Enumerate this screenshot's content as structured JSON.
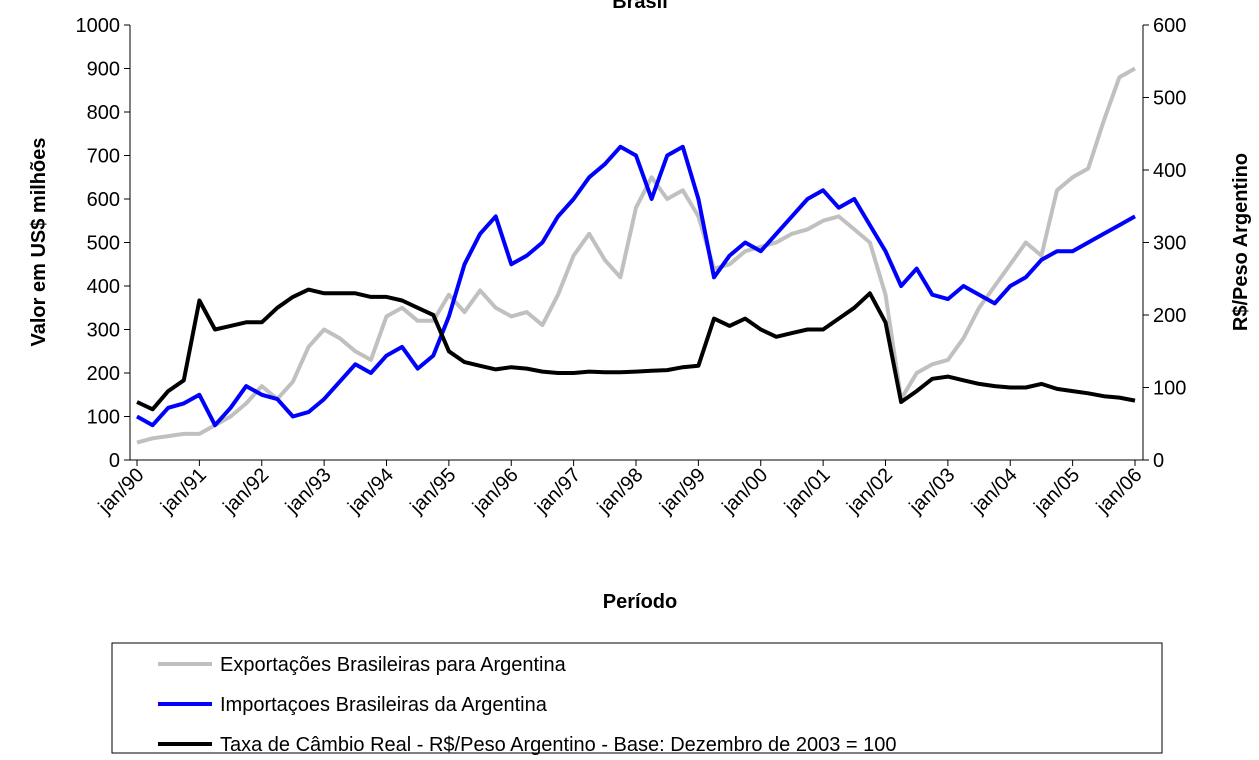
{
  "chart_data": {
    "type": "line",
    "title": "Brasil",
    "x_label": "Período",
    "y_label": "Valor em US$ milhões",
    "y2_label": "R$/Peso Argentino",
    "categories": [
      "jan/90",
      null,
      null,
      null,
      "jan/91",
      null,
      null,
      null,
      "jan/92",
      null,
      null,
      null,
      "jan/93",
      null,
      null,
      null,
      "jan/94",
      null,
      null,
      null,
      "jan/95",
      null,
      null,
      null,
      "jan/96",
      null,
      null,
      null,
      "jan/97",
      null,
      null,
      null,
      "jan/98",
      null,
      null,
      null,
      "jan/99",
      null,
      null,
      null,
      "jan/00",
      null,
      null,
      null,
      "jan/01",
      null,
      null,
      null,
      "jan/02",
      null,
      null,
      null,
      "jan/03",
      null,
      null,
      null,
      "jan/04",
      null,
      null,
      null,
      "jan/05",
      null,
      null,
      null,
      "jan/06"
    ],
    "series": [
      {
        "name": "Exportações Brasileiras para Argentina",
        "color": "#c0c0c0",
        "axis": "y",
        "values": [
          40,
          50,
          55,
          60,
          60,
          80,
          100,
          130,
          170,
          140,
          180,
          260,
          300,
          280,
          250,
          230,
          330,
          350,
          320,
          320,
          380,
          340,
          390,
          350,
          330,
          340,
          310,
          380,
          470,
          520,
          460,
          420,
          580,
          650,
          600,
          620,
          560,
          440,
          450,
          480,
          490,
          500,
          520,
          530,
          550,
          560,
          530,
          500,
          380,
          140,
          200,
          220,
          230,
          280,
          350,
          400,
          450,
          500,
          470,
          620,
          650,
          670,
          780,
          880,
          900
        ]
      },
      {
        "name": "Importaçoes Brasileiras da Argentina",
        "color": "#0000ff",
        "axis": "y",
        "values": [
          100,
          80,
          120,
          130,
          150,
          80,
          120,
          170,
          150,
          140,
          100,
          110,
          140,
          180,
          220,
          200,
          240,
          260,
          210,
          240,
          330,
          450,
          520,
          560,
          450,
          470,
          500,
          560,
          600,
          650,
          680,
          720,
          700,
          600,
          700,
          720,
          600,
          420,
          470,
          500,
          480,
          520,
          560,
          600,
          620,
          580,
          600,
          540,
          480,
          400,
          440,
          380,
          370,
          400,
          380,
          360,
          400,
          420,
          460,
          480,
          480,
          500,
          520,
          540,
          560
        ]
      },
      {
        "name": "Taxa de Câmbio Real - R$/Peso Argentino - Base: Dezembro de 2003 = 100",
        "color": "#000000",
        "axis": "y2",
        "values": [
          80,
          70,
          95,
          110,
          220,
          180,
          185,
          190,
          190,
          210,
          225,
          235,
          230,
          230,
          230,
          225,
          225,
          220,
          210,
          200,
          150,
          135,
          130,
          125,
          128,
          126,
          122,
          120,
          120,
          122,
          121,
          121,
          122,
          123,
          124,
          128,
          130,
          195,
          185,
          195,
          180,
          170,
          175,
          180,
          180,
          195,
          210,
          230,
          190,
          80,
          95,
          112,
          115,
          110,
          105,
          102,
          100,
          100,
          105,
          98,
          95,
          92,
          88,
          86,
          82
        ]
      }
    ],
    "ylim": [
      0,
      1000
    ],
    "yticks": [
      0,
      100,
      200,
      300,
      400,
      500,
      600,
      700,
      800,
      900,
      1000
    ],
    "y2lim": [
      0,
      600
    ],
    "y2ticks": [
      0,
      100,
      200,
      300,
      400,
      500,
      600
    ],
    "grid": false,
    "legend": "bottom"
  }
}
